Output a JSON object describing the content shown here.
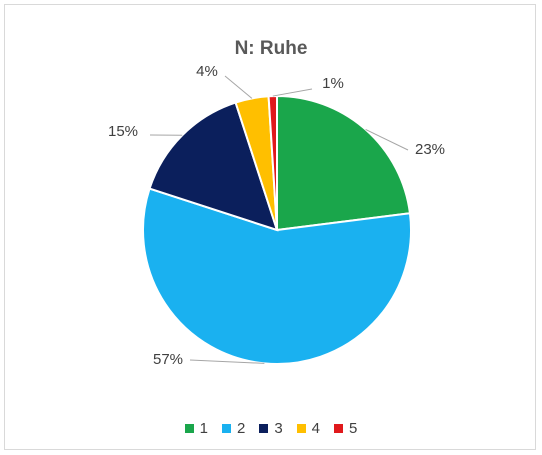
{
  "chart_data": {
    "type": "pie",
    "title": "N: Ruhe",
    "categories": [
      "1",
      "2",
      "3",
      "4",
      "5"
    ],
    "values": [
      23,
      57,
      15,
      4,
      1
    ],
    "labels": [
      "23%",
      "57%",
      "15%",
      "4%",
      "1%"
    ],
    "colors": [
      "#1aa64b",
      "#1ab1f0",
      "#0b1f5c",
      "#ffbf00",
      "#e0191c"
    ],
    "legend_position": "bottom"
  }
}
